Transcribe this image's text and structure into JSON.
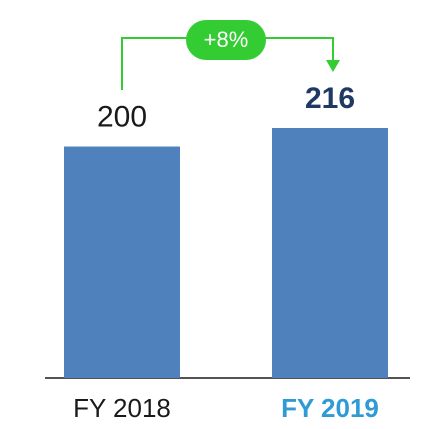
{
  "chart_data": {
    "type": "bar",
    "categories": [
      "FY 2018",
      "FY 2019"
    ],
    "values": [
      200,
      216
    ],
    "color": "#4f81bd",
    "annotation": "+8%"
  }
}
